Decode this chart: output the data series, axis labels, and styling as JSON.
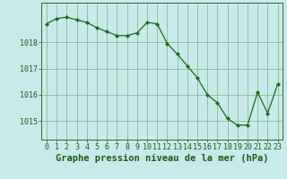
{
  "x": [
    0,
    1,
    2,
    3,
    4,
    5,
    6,
    7,
    8,
    9,
    10,
    11,
    12,
    13,
    14,
    15,
    16,
    17,
    18,
    19,
    20,
    21,
    22,
    23
  ],
  "y": [
    1018.7,
    1018.9,
    1018.95,
    1018.85,
    1018.75,
    1018.55,
    1018.4,
    1018.25,
    1018.25,
    1018.35,
    1018.75,
    1018.7,
    1017.95,
    1017.55,
    1017.1,
    1016.65,
    1016.0,
    1015.7,
    1015.1,
    1014.85,
    1014.85,
    1016.1,
    1015.3,
    1016.4
  ],
  "line_color": "#1a6b1a",
  "marker_color": "#1a6b1a",
  "bg_color": "#c8eaea",
  "grid_color": "#66aa66",
  "axis_color": "#1a5c1a",
  "spine_color": "#336633",
  "xlabel": "Graphe pression niveau de la mer (hPa)",
  "xlabel_fontsize": 7.5,
  "tick_fontsize": 6.0,
  "yticks": [
    1015,
    1016,
    1017,
    1018
  ],
  "ylim": [
    1014.3,
    1019.5
  ],
  "xlim": [
    -0.5,
    23.5
  ]
}
